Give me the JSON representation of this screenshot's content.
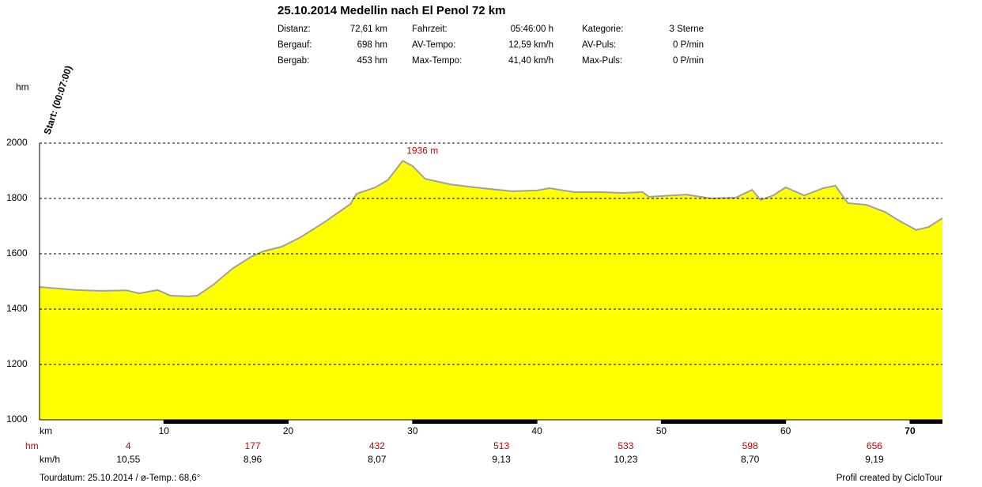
{
  "chart_data": {
    "type": "area",
    "title": "25.10.2014 Medellin nach El Penol 72 km",
    "stats": [
      [
        "Distanz:",
        "72,61 km",
        "Fahrzeit:",
        "05:46:00 h",
        "Kategorie:",
        "3 Sterne"
      ],
      [
        "Bergauf:",
        "698 hm",
        "AV-Tempo:",
        "12,59 km/h",
        "AV-Puls:",
        "0 P/min"
      ],
      [
        "Bergab:",
        "453 hm",
        "Max-Tempo:",
        "41,40 km/h",
        "Max-Puls:",
        "0 P/min"
      ]
    ],
    "y_label": "hm",
    "x_label": "km",
    "start_label": "Start: (00:07:00)",
    "x": [
      0,
      3,
      5,
      7,
      8,
      9.5,
      10.5,
      12,
      12.7,
      14,
      15.5,
      17,
      18,
      19.5,
      21,
      23,
      25,
      25.5,
      27,
      28,
      29.2,
      30,
      31,
      33,
      35,
      38,
      40,
      41,
      43,
      45,
      47,
      48.5,
      49,
      52,
      54,
      56,
      57.3,
      58,
      59,
      60,
      61.5,
      63,
      64,
      65,
      66.5,
      68,
      69,
      70.5,
      71.5,
      72.61
    ],
    "values": [
      1480,
      1469,
      1466,
      1468,
      1457,
      1469,
      1449,
      1446,
      1449,
      1489,
      1546,
      1589,
      1609,
      1626,
      1660,
      1717,
      1780,
      1817,
      1840,
      1866,
      1936,
      1917,
      1871,
      1851,
      1840,
      1826,
      1829,
      1837,
      1823,
      1823,
      1820,
      1823,
      1806,
      1814,
      1800,
      1803,
      1831,
      1794,
      1811,
      1840,
      1811,
      1837,
      1846,
      1783,
      1777,
      1751,
      1723,
      1686,
      1697,
      1729
    ],
    "color": "#ffff00",
    "line_color": "#a0a0a0",
    "annotations": [
      {
        "text": "1936 m",
        "x": 29.2,
        "y": 1936
      }
    ],
    "xlim": [
      0,
      72.61
    ],
    "ylim": [
      1000,
      2000
    ],
    "xticks": [
      10,
      20,
      30,
      40,
      50,
      60,
      70
    ],
    "yticks": [
      1000,
      1200,
      1400,
      1600,
      1800,
      2000
    ],
    "grid": true,
    "segments": {
      "hm_label": "hm",
      "kmh_label": "km/h",
      "hm": [
        4,
        177,
        432,
        513,
        533,
        598,
        656
      ],
      "kmh": [
        "10,55",
        "8,96",
        "8,07",
        "9,13",
        "10,23",
        "8,70",
        "9,19"
      ]
    },
    "footer_left": "Tourdatum: 25.10.2014  /  ø-Temp.: 68,6°",
    "footer_right": "Profil created by CicloTour"
  }
}
